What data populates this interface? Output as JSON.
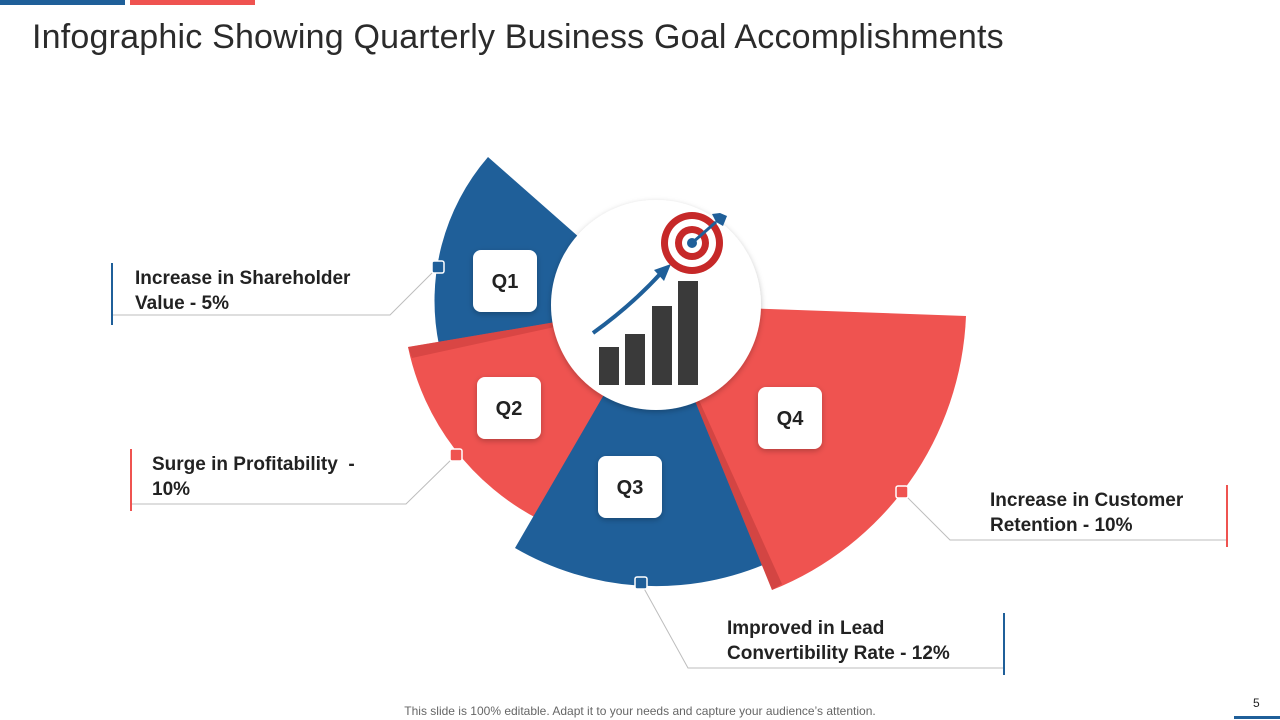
{
  "title": "Infographic Showing Quarterly Business Goal Accomplishments",
  "colors": {
    "blue": "#1f5f99",
    "red": "#ef5350",
    "dark": "#3a3a3a",
    "target_red": "#c62828"
  },
  "center_icon": "growth-chart-target-icon",
  "quarters": [
    {
      "label": "Q1",
      "text": "Increase in Shareholder Value - 5%",
      "line1": "Increase in Shareholder",
      "line2": "Value - 5%"
    },
    {
      "label": "Q2",
      "text": "Surge in Profitability - 10%",
      "line1": "Surge in Profitability  -",
      "line2": "10%"
    },
    {
      "label": "Q3",
      "text": "Improved in Lead Convertibility Rate - 12%",
      "line1": "Improved in Lead",
      "line2": "Convertibility Rate - 12%"
    },
    {
      "label": "Q4",
      "text": "Increase in Customer Retention - 10%",
      "line1": "Increase in Customer",
      "line2": "Retention - 10%"
    }
  ],
  "footer": "This slide is 100% editable. Adapt it to your needs and capture your audience’s attention.",
  "page_number": "5"
}
